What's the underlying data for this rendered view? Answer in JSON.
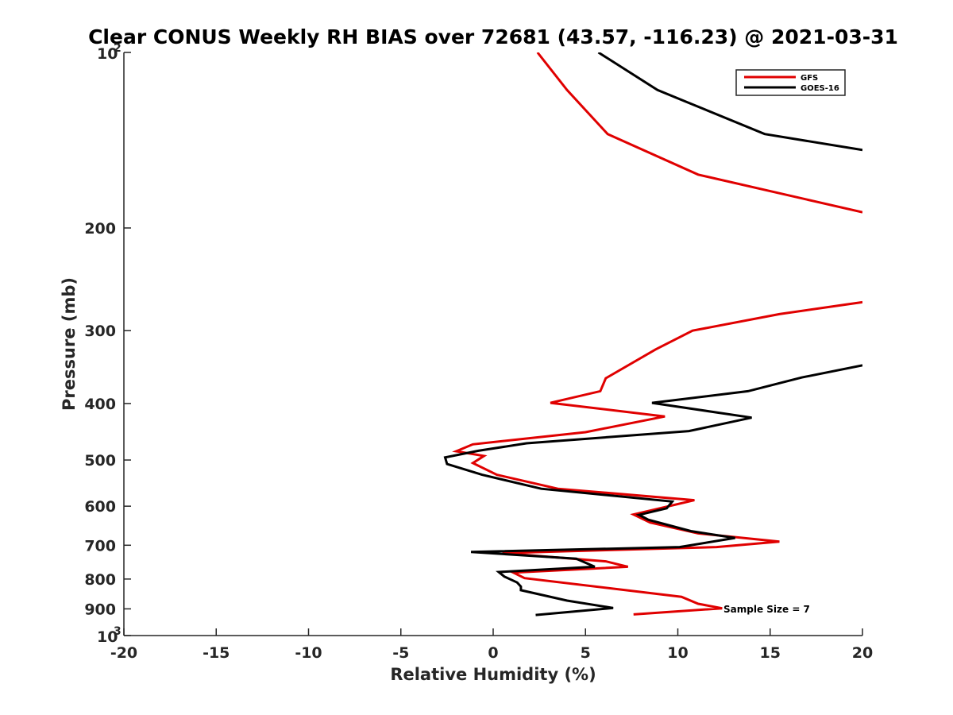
{
  "chart_data": {
    "type": "line",
    "title": "Clear CONUS Weekly RH BIAS over 72681 (43.57, -116.23) @ 2021-03-31",
    "xlabel": "Relative Humidity (%)",
    "ylabel": "Pressure (mb)",
    "xlim": [
      -20,
      20
    ],
    "ylim": [
      100,
      1000
    ],
    "y_scale": "log",
    "y_reversed": true,
    "grid": false,
    "legend_position": "top-right",
    "x_ticks": [
      "-20",
      "-15",
      "-10",
      "-5",
      "0",
      "5",
      "10",
      "15",
      "20"
    ],
    "y_ticks": [
      {
        "value": 100,
        "base": "10",
        "exp": "2"
      },
      {
        "value": 200,
        "label": "200"
      },
      {
        "value": 300,
        "label": "300"
      },
      {
        "value": 400,
        "label": "400"
      },
      {
        "value": 500,
        "label": "500"
      },
      {
        "value": 600,
        "label": "600"
      },
      {
        "value": 700,
        "label": "700"
      },
      {
        "value": 800,
        "label": "800"
      },
      {
        "value": 900,
        "label": "900"
      },
      {
        "value": 1000,
        "base": "10",
        "exp": "3"
      }
    ],
    "annotation": "Sample Size = 7",
    "series": [
      {
        "name": "GFS",
        "color": "#e00000",
        "segments": [
          [
            [
              2.4,
              100
            ],
            [
              4.0,
              116
            ],
            [
              6.2,
              138
            ],
            [
              11.1,
              162
            ],
            [
              20.0,
              188
            ]
          ],
          [
            [
              20.0,
              268
            ],
            [
              15.5,
              281
            ],
            [
              10.8,
              300
            ],
            [
              8.8,
              323
            ],
            [
              6.1,
              362
            ],
            [
              5.8,
              381
            ],
            [
              3.1,
              399
            ],
            [
              9.3,
              421
            ],
            [
              5.0,
              448
            ],
            [
              -1.1,
              470
            ],
            [
              -2.0,
              483
            ],
            [
              -0.5,
              492
            ],
            [
              -1.1,
              506
            ],
            [
              0.2,
              530
            ],
            [
              3.5,
              560
            ],
            [
              10.9,
              586
            ],
            [
              7.6,
              620
            ],
            [
              8.5,
              640
            ],
            [
              11.1,
              668
            ],
            [
              15.5,
              690
            ],
            [
              12.1,
              705
            ],
            [
              0.5,
              722
            ],
            [
              6.1,
              746
            ],
            [
              7.3,
              762
            ],
            [
              1.1,
              780
            ],
            [
              1.7,
              797
            ],
            [
              10.2,
              858
            ],
            [
              11.1,
              882
            ],
            [
              12.4,
              898
            ],
            [
              7.6,
              920
            ]
          ]
        ]
      },
      {
        "name": "GOES-16",
        "color": "#000000",
        "segments": [
          [
            [
              5.7,
              100
            ],
            [
              8.9,
              116
            ],
            [
              14.7,
              138
            ],
            [
              20.0,
              147
            ]
          ],
          [
            [
              20.0,
              344
            ],
            [
              16.7,
              361
            ],
            [
              13.8,
              381
            ],
            [
              8.6,
              399
            ],
            [
              14.0,
              423
            ],
            [
              10.6,
              446
            ],
            [
              1.8,
              468
            ],
            [
              -0.8,
              482
            ],
            [
              -2.6,
              495
            ],
            [
              -2.5,
              508
            ],
            [
              -0.6,
              530
            ],
            [
              2.6,
              560
            ],
            [
              9.7,
              589
            ],
            [
              9.4,
              605
            ],
            [
              7.9,
              621
            ],
            [
              8.4,
              633
            ],
            [
              10.7,
              662
            ],
            [
              13.1,
              680
            ],
            [
              10.1,
              705
            ],
            [
              -1.2,
              719
            ],
            [
              4.5,
              738
            ],
            [
              5.5,
              762
            ],
            [
              0.3,
              778
            ],
            [
              0.6,
              792
            ],
            [
              1.3,
              811
            ],
            [
              1.5,
              824
            ],
            [
              1.5,
              836
            ],
            [
              4.0,
              871
            ],
            [
              6.5,
              897
            ],
            [
              2.3,
              922
            ]
          ]
        ]
      }
    ]
  }
}
